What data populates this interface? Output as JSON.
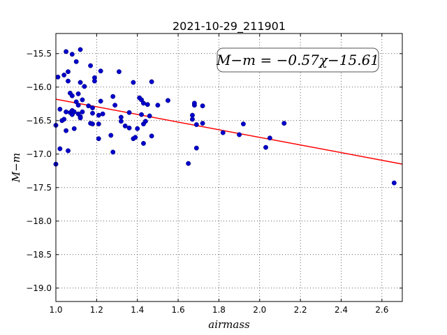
{
  "chart_data": {
    "type": "scatter",
    "title": "2021-10-29_211901",
    "xlabel": "airmass",
    "ylabel": "M−m",
    "xlim": [
      1.0,
      2.7
    ],
    "ylim": [
      -15.2,
      -19.2
    ],
    "x_ticks": [
      "1.0",
      "1.2",
      "1.4",
      "1.6",
      "1.8",
      "2.0",
      "2.2",
      "2.4",
      "2.6"
    ],
    "y_ticks": [
      "−15.5",
      "−16.0",
      "−16.5",
      "−17.0",
      "−17.5",
      "−18.0",
      "−18.5",
      "−19.0"
    ],
    "grid": true,
    "annotation": "M−m = −0.57χ−15.61",
    "fit": {
      "slope": -0.57,
      "intercept": -15.61,
      "color": "#ff0000"
    },
    "point_color": "#0000cc",
    "points": [
      [
        1.0,
        -16.57
      ],
      [
        1.0,
        -17.15
      ],
      [
        1.01,
        -15.85
      ],
      [
        1.02,
        -16.92
      ],
      [
        1.02,
        -16.33
      ],
      [
        1.03,
        -16.5
      ],
      [
        1.04,
        -16.48
      ],
      [
        1.04,
        -15.82
      ],
      [
        1.05,
        -15.47
      ],
      [
        1.05,
        -16.37
      ],
      [
        1.05,
        -16.65
      ],
      [
        1.06,
        -16.95
      ],
      [
        1.06,
        -15.77
      ],
      [
        1.06,
        -15.91
      ],
      [
        1.07,
        -16.38
      ],
      [
        1.07,
        -16.09
      ],
      [
        1.08,
        -15.51
      ],
      [
        1.08,
        -16.13
      ],
      [
        1.08,
        -16.41
      ],
      [
        1.08,
        -16.35
      ],
      [
        1.09,
        -16.62
      ],
      [
        1.09,
        -16.37
      ],
      [
        1.1,
        -15.62
      ],
      [
        1.1,
        -16.22
      ],
      [
        1.11,
        -16.4
      ],
      [
        1.11,
        -16.27
      ],
      [
        1.11,
        -16.1
      ],
      [
        1.12,
        -15.44
      ],
      [
        1.12,
        -15.93
      ],
      [
        1.12,
        -16.44
      ],
      [
        1.12,
        -16.46
      ],
      [
        1.13,
        -16.37
      ],
      [
        1.13,
        -16.19
      ],
      [
        1.14,
        -15.99
      ],
      [
        1.16,
        -16.28
      ],
      [
        1.17,
        -15.68
      ],
      [
        1.17,
        -16.54
      ],
      [
        1.18,
        -16.55
      ],
      [
        1.18,
        -16.31
      ],
      [
        1.18,
        -16.39
      ],
      [
        1.19,
        -15.86
      ],
      [
        1.19,
        -15.91
      ],
      [
        1.21,
        -16.42
      ],
      [
        1.21,
        -16.55
      ],
      [
        1.21,
        -16.77
      ],
      [
        1.22,
        -15.76
      ],
      [
        1.22,
        -16.21
      ],
      [
        1.23,
        -16.4
      ],
      [
        1.27,
        -16.72
      ],
      [
        1.28,
        -16.97
      ],
      [
        1.28,
        -16.14
      ],
      [
        1.29,
        -16.27
      ],
      [
        1.31,
        -15.77
      ],
      [
        1.32,
        -16.45
      ],
      [
        1.32,
        -16.51
      ],
      [
        1.34,
        -16.58
      ],
      [
        1.36,
        -16.61
      ],
      [
        1.36,
        -16.38
      ],
      [
        1.38,
        -15.93
      ],
      [
        1.38,
        -16.77
      ],
      [
        1.39,
        -16.75
      ],
      [
        1.4,
        -16.62
      ],
      [
        1.41,
        -16.16
      ],
      [
        1.42,
        -16.41
      ],
      [
        1.42,
        -16.19
      ],
      [
        1.43,
        -16.24
      ],
      [
        1.43,
        -16.55
      ],
      [
        1.43,
        -16.84
      ],
      [
        1.44,
        -16.51
      ],
      [
        1.45,
        -16.26
      ],
      [
        1.46,
        -16.43
      ],
      [
        1.47,
        -15.92
      ],
      [
        1.47,
        -16.73
      ],
      [
        1.5,
        -16.27
      ],
      [
        1.55,
        -16.2
      ],
      [
        1.65,
        -17.14
      ],
      [
        1.67,
        -16.42
      ],
      [
        1.67,
        -16.48
      ],
      [
        1.68,
        -16.27
      ],
      [
        1.68,
        -16.24
      ],
      [
        1.69,
        -16.91
      ],
      [
        1.69,
        -16.56
      ],
      [
        1.72,
        -16.54
      ],
      [
        1.72,
        -16.28
      ],
      [
        1.82,
        -16.68
      ],
      [
        1.9,
        -16.71
      ],
      [
        1.92,
        -16.55
      ],
      [
        2.03,
        -16.9
      ],
      [
        2.05,
        -16.76
      ],
      [
        2.12,
        -16.54
      ],
      [
        2.66,
        -17.43
      ]
    ]
  }
}
